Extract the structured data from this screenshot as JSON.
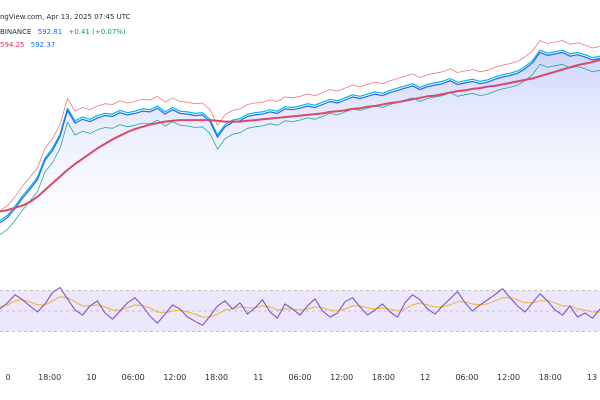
{
  "header": {
    "source_line": "ngView.com, Apr 13, 2025 07:45 UTC",
    "exchange": "BINANCE",
    "price": "592.81",
    "change": "+0.41 (+0.07%)",
    "ma_label_1": "594.25",
    "ma_label_2": "592.37"
  },
  "colors": {
    "background": "#ffffff",
    "area_fill_top": "#c5cffb",
    "area_fill_bottom": "#ffffff",
    "price_line": "#2962ff",
    "ma_slow": "#d84a6a",
    "bb_upper": "#f07a7a",
    "bb_lower": "#26a69a",
    "bb_mid": "#00bcd4",
    "rsi_line": "#7e57c2",
    "rsi_signal": "#f0b429",
    "rsi_band": "#ede7fb",
    "rsi_band_line": "#9e9e9e"
  },
  "chart_data": [
    {
      "type": "line",
      "title": "",
      "series": [
        {
          "name": "",
          "values": [
            570.5,
            571.2,
            572.4,
            573.8,
            575.0,
            576.3,
            578.9,
            580.2,
            582.1,
            585.6,
            583.9,
            584.4,
            584.1,
            584.6,
            584.9,
            584.8,
            585.3,
            585.0,
            585.2,
            585.5,
            585.4,
            585.9,
            585.1,
            585.7,
            585.2,
            585.1,
            584.9,
            585.0,
            584.1,
            582.0,
            583.4,
            584.0,
            584.2,
            584.8,
            585.0,
            585.1,
            585.4,
            585.2,
            585.8,
            585.7,
            585.9,
            586.2,
            586.0,
            586.4,
            586.8,
            586.6,
            587.0,
            587.4,
            587.2,
            587.5,
            587.8,
            587.6,
            588.0,
            588.3,
            588.6,
            588.9,
            588.4,
            588.8,
            589.0,
            589.2,
            589.6,
            589.1,
            589.3,
            589.5,
            589.2,
            589.4,
            589.8,
            590.1,
            590.3,
            590.6,
            591.2,
            592.0,
            593.4,
            593.0,
            593.2,
            593.4,
            592.9,
            593.1,
            592.8,
            592.4,
            592.6
          ]
        },
        {
          "name": "",
          "values": [
            572.0,
            572.2,
            572.5,
            572.8,
            573.3,
            574.0,
            574.9,
            575.8,
            576.7,
            577.6,
            578.4,
            579.1,
            579.8,
            580.5,
            581.1,
            581.7,
            582.2,
            582.7,
            583.1,
            583.4,
            583.7,
            583.9,
            584.1,
            584.2,
            584.3,
            584.3,
            584.3,
            584.3,
            584.3,
            584.2,
            584.1,
            584.1,
            584.1,
            584.2,
            584.3,
            584.4,
            584.5,
            584.6,
            584.7,
            584.8,
            584.9,
            585.0,
            585.1,
            585.2,
            585.4,
            585.5,
            585.6,
            585.8,
            585.9,
            586.1,
            586.2,
            586.4,
            586.6,
            586.7,
            586.9,
            587.1,
            587.3,
            587.5,
            587.6,
            587.8,
            588.0,
            588.2,
            588.3,
            588.5,
            588.6,
            588.8,
            588.9,
            589.1,
            589.3,
            589.5,
            589.7,
            589.9,
            590.2,
            590.5,
            590.8,
            591.1,
            591.4,
            591.7,
            591.9,
            592.1,
            592.4
          ]
        }
      ]
    },
    {
      "type": "line",
      "title": "",
      "ylim": [
        0,
        100
      ],
      "series": [
        {
          "name": "",
          "values": [
            52,
            58,
            66,
            61,
            55,
            49,
            57,
            68,
            73,
            62,
            51,
            46,
            55,
            60,
            48,
            42,
            50,
            58,
            63,
            55,
            45,
            38,
            47,
            56,
            52,
            44,
            40,
            36,
            45,
            55,
            60,
            52,
            58,
            47,
            53,
            61,
            49,
            43,
            57,
            52,
            46,
            55,
            62,
            50,
            44,
            48,
            59,
            63,
            54,
            46,
            51,
            57,
            49,
            44,
            58,
            66,
            61,
            52,
            47,
            55,
            62,
            69,
            58,
            50,
            56,
            61,
            66,
            72,
            63,
            55,
            49,
            58,
            67,
            60,
            51,
            46,
            55,
            44,
            48,
            43,
            52
          ]
        },
        {
          "name": "",
          "values": [
            54,
            56,
            60,
            61,
            59,
            56,
            56,
            60,
            64,
            63,
            59,
            55,
            55,
            56,
            54,
            51,
            51,
            53,
            56,
            55,
            53,
            49,
            48,
            50,
            51,
            49,
            47,
            44,
            44,
            47,
            51,
            52,
            54,
            53,
            53,
            55,
            54,
            51,
            52,
            52,
            51,
            52,
            54,
            53,
            51,
            50,
            52,
            55,
            55,
            53,
            52,
            53,
            52,
            50,
            52,
            56,
            58,
            56,
            54,
            54,
            56,
            59,
            59,
            57,
            56,
            57,
            60,
            63,
            63,
            61,
            58,
            58,
            60,
            60,
            58,
            55,
            55,
            52,
            51,
            49,
            49
          ]
        }
      ]
    }
  ],
  "x_axis": {
    "ticks": [
      "0",
      "18:00",
      "10",
      "06:00",
      "12:00",
      "18:00",
      "11",
      "06:00",
      "12:00",
      "18:00",
      "12",
      "06:00",
      "12:00",
      "18:00",
      "13"
    ]
  }
}
